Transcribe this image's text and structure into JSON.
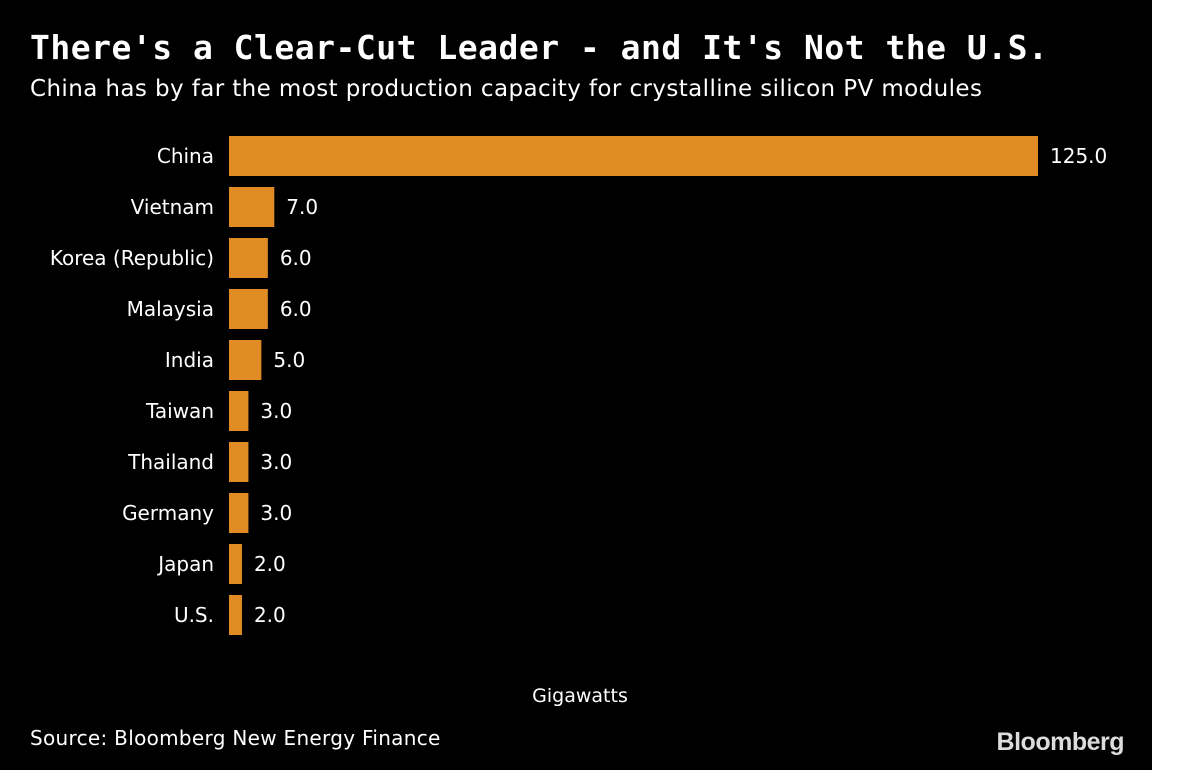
{
  "title": "There's a Clear-Cut Leader - and It's Not the U.S.",
  "subtitle": "China has by far the most production capacity for crystalline silicon PV modules",
  "source": "Source: Bloomberg New Energy Finance",
  "logo": "Bloomberg",
  "colors": {
    "background": "#000000",
    "bar": "#e18b25",
    "text": "#ffffff"
  },
  "chart_data": {
    "type": "bar",
    "orientation": "horizontal",
    "title": "There's a Clear-Cut Leader - and It's Not the U.S.",
    "subtitle": "China has by far the most production capacity for crystalline silicon PV modules",
    "xlabel": "Gigawatts",
    "ylabel": "",
    "grid": false,
    "xlim": [
      0,
      125
    ],
    "categories": [
      "China",
      "Vietnam",
      "Korea (Republic)",
      "Malaysia",
      "India",
      "Taiwan",
      "Thailand",
      "Germany",
      "Japan",
      "U.S."
    ],
    "values": [
      125.0,
      7.0,
      6.0,
      6.0,
      5.0,
      3.0,
      3.0,
      3.0,
      2.0,
      2.0
    ],
    "value_labels": [
      "125.0",
      "7.0",
      "6.0",
      "6.0",
      "5.0",
      "3.0",
      "3.0",
      "3.0",
      "2.0",
      "2.0"
    ]
  }
}
